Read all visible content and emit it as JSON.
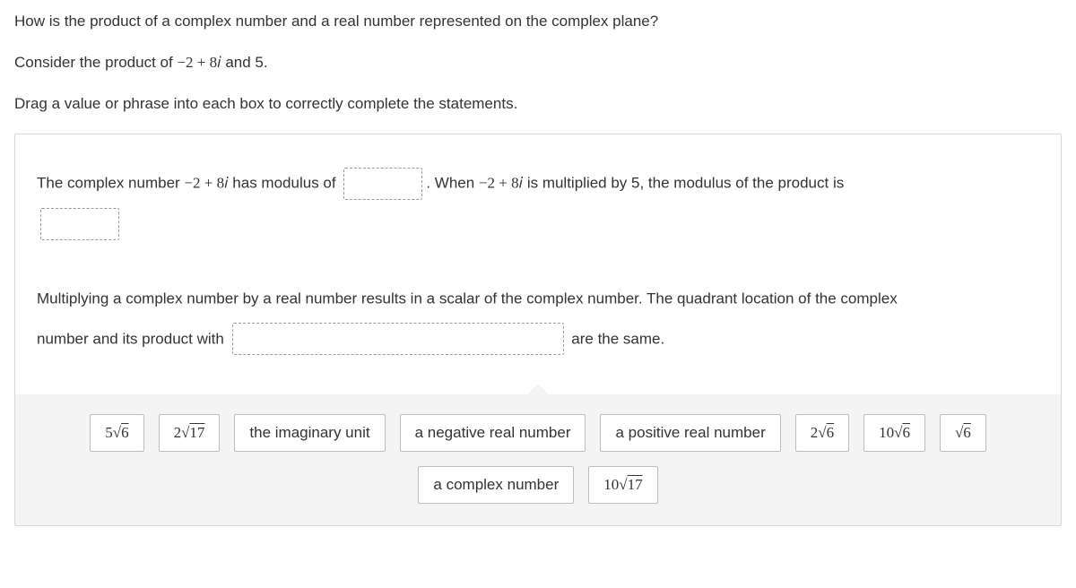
{
  "intro": {
    "question": "How is the product of a complex number and a real number represented on the complex plane?",
    "consider_pre": "Consider the product of ",
    "consider_expr": "−2 + 8𝑖",
    "consider_post": " and 5.",
    "instruction": "Drag a value or phrase into each box to correctly complete the statements."
  },
  "stmt1": {
    "part1_pre": "The complex number ",
    "part1_expr": "−2 + 8𝑖",
    "part1_post": " has modulus of ",
    "part2_pre": ". When ",
    "part2_expr": "−2 + 8𝑖",
    "part2_post": " is multiplied by 5, the modulus of the product is"
  },
  "stmt2": {
    "line1": "Multiplying a complex number by a real number results in a scalar of the complex number. The quadrant location of the complex",
    "line2_pre": "number and its product with ",
    "line2_post": " are the same."
  },
  "tiles": {
    "row1": [
      {
        "html": "5√<span class='ov'>6</span>",
        "math": true
      },
      {
        "html": "2√<span class='ov'>17</span>",
        "math": true
      },
      {
        "html": "the imaginary unit",
        "math": false
      },
      {
        "html": "a negative real number",
        "math": false
      },
      {
        "html": "a positive real number",
        "math": false
      },
      {
        "html": "2√<span class='ov'>6</span>",
        "math": true
      },
      {
        "html": "10√<span class='ov'>6</span>",
        "math": true
      },
      {
        "html": "√<span class='ov'>6</span>",
        "math": true
      }
    ],
    "row2": [
      {
        "html": "a complex number",
        "math": false
      },
      {
        "html": "10√<span class='ov'>17</span>",
        "math": true
      }
    ]
  },
  "style": {
    "tile_bg": "#ffffff",
    "tile_border": "#bdbdbd",
    "tiles_area_bg": "#f4f4f4",
    "slot_border": "#999999",
    "text_color": "#333333"
  }
}
